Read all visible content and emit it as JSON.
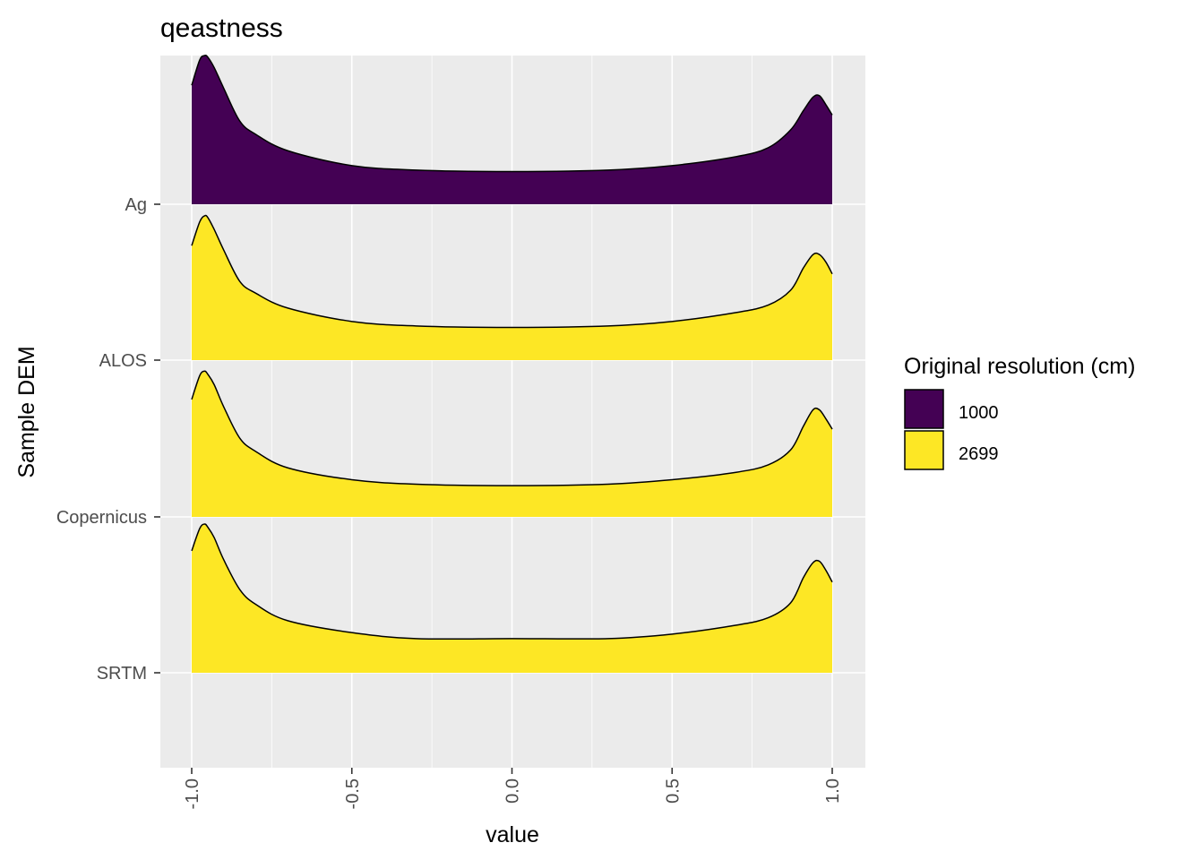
{
  "chart_data": {
    "type": "ridgeline",
    "title": "qeastness",
    "xlabel": "value",
    "ylabel": "Sample DEM",
    "xlim": [
      -1.1,
      1.1
    ],
    "x_ticks": [
      -1.0,
      -0.5,
      0.0,
      0.5,
      1.0
    ],
    "x_tick_labels": [
      "-1.0",
      "-0.5",
      "0.0",
      "0.5",
      "1.0"
    ],
    "categories": [
      "Ag",
      "ALOS",
      "Copernicus",
      "SRTM"
    ],
    "x": [
      -1.0,
      -0.975,
      -0.96,
      -0.95,
      -0.93,
      -0.9,
      -0.85,
      -0.8,
      -0.7,
      -0.5,
      -0.3,
      0.0,
      0.3,
      0.5,
      0.7,
      0.8,
      0.87,
      0.91,
      0.94,
      0.96,
      0.98,
      1.0
    ],
    "legend": {
      "title": "Original resolution (cm)",
      "entries": [
        {
          "label": "1000",
          "color": "#440154"
        },
        {
          "label": "2699",
          "color": "#FDE725"
        }
      ]
    },
    "series": [
      {
        "name": "Ag",
        "resolution": "1000",
        "color": "#440154",
        "values": [
          0.8,
          0.97,
          1.0,
          0.99,
          0.92,
          0.78,
          0.56,
          0.47,
          0.36,
          0.26,
          0.23,
          0.22,
          0.23,
          0.26,
          0.32,
          0.38,
          0.5,
          0.63,
          0.72,
          0.73,
          0.67,
          0.6
        ]
      },
      {
        "name": "ALOS",
        "resolution": "2699",
        "color": "#FDE725",
        "values": [
          0.77,
          0.93,
          0.97,
          0.96,
          0.88,
          0.74,
          0.53,
          0.45,
          0.35,
          0.26,
          0.23,
          0.22,
          0.23,
          0.26,
          0.32,
          0.37,
          0.47,
          0.62,
          0.71,
          0.71,
          0.66,
          0.58
        ]
      },
      {
        "name": "Copernicus",
        "resolution": "2699",
        "color": "#FDE725",
        "values": [
          0.79,
          0.95,
          0.98,
          0.96,
          0.89,
          0.74,
          0.53,
          0.44,
          0.33,
          0.25,
          0.22,
          0.21,
          0.22,
          0.25,
          0.3,
          0.35,
          0.45,
          0.61,
          0.72,
          0.72,
          0.66,
          0.59
        ]
      },
      {
        "name": "SRTM",
        "resolution": "2699",
        "color": "#FDE725",
        "values": [
          0.82,
          0.97,
          1.0,
          0.98,
          0.91,
          0.76,
          0.56,
          0.46,
          0.35,
          0.27,
          0.23,
          0.23,
          0.23,
          0.26,
          0.32,
          0.37,
          0.47,
          0.64,
          0.74,
          0.75,
          0.69,
          0.61
        ]
      }
    ]
  }
}
